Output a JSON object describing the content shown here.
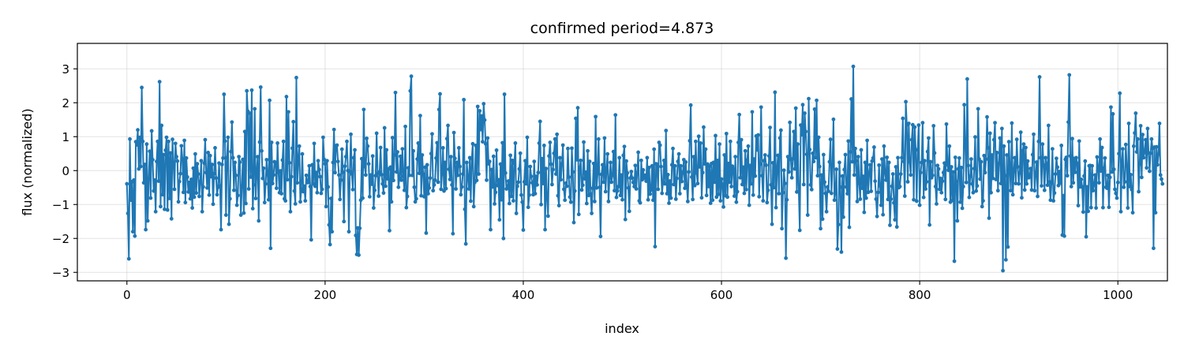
{
  "chart_data": {
    "type": "line",
    "title": "confirmed  period=4.873",
    "xlabel": "index",
    "ylabel": "flux (normalized)",
    "xlim": [
      -50,
      1050
    ],
    "ylim": [
      -3.25,
      3.75
    ],
    "xticks": [
      0,
      200,
      400,
      600,
      800,
      1000
    ],
    "yticks": [
      -3,
      -2,
      -1,
      0,
      1,
      2,
      3
    ],
    "grid": true,
    "series": [
      {
        "color": "#1f77b4",
        "marker": "circle",
        "x_start": 0,
        "x_step": 1,
        "values": [
          -0.39,
          -1.26,
          -2.6,
          0.93,
          -0.87,
          -0.33,
          -1.8,
          -0.28,
          -1.93,
          0.85,
          0.76,
          1.2,
          0.05,
          0.98,
          0.12,
          2.45,
          0.86,
          -0.36,
          0.18,
          -1.74,
          0.78,
          -1.48,
          -0.25,
          0.57,
          -0.81,
          1.17,
          0.32,
          -0.6,
          -0.28,
          -1.21,
          0.27,
          0.86,
          -0.31,
          2.62,
          -1.06,
          1.33,
          -0.71,
          0.47,
          -1.14,
          0.6,
          0.98,
          -1.16,
          0.86,
          -0.82,
          0.52,
          -1.42,
          0.92,
          0.24,
          -0.55,
          0.8,
          0.41,
          0.28,
          -0.92,
          -0.32,
          -0.09,
          0.73,
          0.34,
          -0.64,
          0.89,
          -0.94,
          0.37,
          -0.19,
          -0.63,
          -0.35,
          -0.83,
          -0.26,
          -1.1,
          0.07,
          -0.78,
          0.49,
          -0.66,
          0.2,
          -0.1,
          -0.76,
          -0.33,
          0.29,
          -1.21,
          -0.48,
          0.22,
          0.91,
          -0.06,
          -0.51,
          0.53,
          -0.72,
          0.44,
          -0.18,
          0.18,
          -0.99,
          -0.09,
          0.67,
          -0.22,
          -0.71,
          -0.49,
          0.22,
          -0.45,
          -1.74,
          0.18,
          0.37,
          2.25,
          0.87,
          -1.31,
          0.38,
          0.98,
          -1.58,
          -0.83,
          0.56,
          1.43,
          0.38,
          -0.58,
          0.24,
          -0.14,
          -1.02,
          -0.73,
          0.41,
          0.25,
          -1.31,
          -0.45,
          0.33,
          -1.25,
          1.15,
          -0.97,
          2.35,
          1.75,
          -0.54,
          1.69,
          -0.19,
          2.37,
          -1.12,
          -0.42,
          1.82,
          -0.82,
          -0.01,
          0.41,
          -1.48,
          0.84,
          2.46,
          0.58,
          -0.23,
          0.07,
          -0.94,
          -0.39,
          0.32,
          -0.12,
          -0.86,
          2.07,
          -2.29,
          0.83,
          -0.38,
          -0.13,
          0.26,
          0.24,
          -0.52,
          0.81,
          -0.05,
          -0.65,
          -0.01,
          -0.68,
          0.31,
          0.86,
          -0.83,
          -0.89,
          2.18,
          -0.27,
          1.73,
          0.23,
          -1.21,
          -0.18,
          0.66,
          1.44,
          -0.6,
          -0.98,
          2.74,
          -0.36,
          0.34,
          0.72,
          -0.92,
          -0.54,
          0.49,
          -0.62,
          -0.46,
          -0.89,
          -0.14,
          -0.35,
          -0.35,
          0.14,
          -0.47,
          -2.04,
          0.17,
          -0.39,
          0.8,
          -0.46,
          -0.06,
          -0.65,
          0.29,
          0.03,
          -0.18,
          -0.67,
          -0.55,
          0.98,
          0.33,
          0.2,
          -1.06,
          0.29,
          -0.48,
          -1.6,
          -2.18,
          -0.82,
          -1.8,
          0.24,
          1.21,
          -0.06,
          0.73,
          0.75,
          0.27,
          -0.13,
          -0.85,
          -0.28,
          0.63,
          -0.05,
          -1.5,
          0.13,
          0.41,
          0.86,
          0.0,
          -1.8,
          -0.03,
          1.07,
          -0.1,
          -0.56,
          0.38,
          0.61,
          -1.91,
          -2.47,
          -1.69,
          -2.49,
          -1.7,
          -0.87,
          0.35,
          -0.81,
          1.8,
          0.12,
          -0.13,
          0.95,
          0.72,
          0.2,
          -0.77,
          -0.13,
          -0.4,
          0.43,
          -1.1,
          -0.58,
          -0.15,
          1.1,
          -0.08,
          -0.75,
          -0.04,
          0.68,
          -0.12,
          -0.39,
          -0.66,
          1.26,
          -0.46,
          0.61,
          -0.24,
          0.05,
          -1.77,
          0.1,
          -0.92,
          0.97,
          -0.29,
          0.46,
          2.3,
          -0.04,
          0.55,
          -0.49,
          -0.23,
          0.42,
          -0.28,
          0.64,
          -0.17,
          -0.58,
          1.3,
          -1.09,
          -0.76,
          0.08,
          -0.14,
          2.35,
          2.78,
          -0.14,
          0.58,
          -0.49,
          -0.92,
          -0.83,
          0.34,
          0.81,
          -0.08,
          1.62,
          -0.74,
          0.46,
          -0.1,
          -0.77,
          0.1,
          -1.84,
          0.17,
          -0.68,
          -0.51,
          -0.22,
          0.5,
          1.08,
          -0.59,
          -0.42,
          -0.28,
          0.37,
          0.82,
          -0.34,
          1.8,
          2.26,
          -0.55,
          -0.11,
          0.67,
          -0.6,
          0.24,
          -0.53,
          0.94,
          1.33,
          0.04,
          -0.26,
          0.41,
          -0.42,
          -1.86,
          1.12,
          0.36,
          -0.54,
          0.24,
          -0.14,
          0.67,
          0.12,
          -0.71,
          -0.48,
          -0.1,
          2.09,
          -1.14,
          -2.16,
          0.24,
          -0.16,
          -0.54,
          0.38,
          -0.9,
          0.35,
          0.79,
          -1.06,
          -0.35,
          0.74,
          -0.29,
          1.89,
          -0.1,
          1.76,
          1.21,
          1.61,
          0.85,
          1.97,
          1.49,
          0.79,
          -0.28,
          0.96,
          0.2,
          0.27,
          -1.74,
          0.03,
          -0.48,
          0.42,
          -0.98,
          -0.64,
          0.6,
          -0.44,
          -0.27,
          -1.45,
          0.19,
          -0.86,
          0.82,
          -2.0,
          2.25,
          -0.07,
          -0.54,
          -0.47,
          -0.31,
          -0.97,
          0.45,
          -0.76,
          0.3,
          -0.89,
          0.21,
          0.81,
          -1.26,
          -0.46,
          -0.34,
          0.05,
          0.51,
          -0.72,
          -0.93,
          -1.75,
          -0.33,
          0.29,
          -0.39,
          0.98,
          -1.08,
          -0.72,
          0.12,
          -0.17,
          -0.36,
          -0.71,
          0.27,
          -0.68,
          -0.17,
          -0.42,
          -0.06,
          0.81,
          1.45,
          -1.0,
          0.35,
          -0.38,
          0.74,
          -1.74,
          0.06,
          -0.82,
          -1.34,
          0.43,
          0.83,
          0.19,
          -0.41,
          0.03,
          0.51,
          0.93,
          -0.1,
          1.07,
          -0.74,
          -1.03,
          0.38,
          -0.27,
          0.2,
          0.75,
          -0.55,
          -0.87,
          -0.37,
          -0.46,
          0.65,
          -0.19,
          -0.78,
          -0.93,
          0.66,
          -0.04,
          -1.53,
          -0.6,
          1.54,
          0.32,
          1.85,
          -1.29,
          0.08,
          0.3,
          -0.57,
          -0.43,
          0.84,
          -0.24,
          -0.05,
          -0.97,
          0.58,
          -0.73,
          0.27,
          -0.69,
          -1.26,
          -0.52,
          0.21,
          -0.91,
          1.59,
          -0.51,
          -0.09,
          0.93,
          -0.49,
          -1.94,
          -0.11,
          0.17,
          -0.34,
          0.96,
          -0.62,
          0.04,
          0.49,
          -0.91,
          -0.23,
          0.24,
          -0.34,
          -0.14,
          0.56,
          -0.59,
          1.64,
          -0.79,
          -0.6,
          -0.47,
          0.38,
          -0.73,
          -0.13,
          -0.86,
          0.45,
          0.71,
          -1.44,
          0.28,
          -0.07,
          -0.51,
          -1.2,
          -0.22,
          -0.03,
          -0.22,
          -0.35,
          -0.47,
          0.15,
          -0.54,
          -0.06,
          0.54,
          -0.89,
          -0.95,
          0.3,
          -0.27,
          0.02,
          -0.22,
          -0.14,
          -0.31,
          0.38,
          -0.86,
          0.09,
          -0.69,
          -0.57,
          0.14,
          -0.87,
          0.63,
          -2.24,
          0.2,
          0.18,
          -0.55,
          0.83,
          0.75,
          0.12,
          -0.67,
          -0.35,
          0.3,
          -0.39,
          1.18,
          -0.68,
          -0.12,
          -0.96,
          -0.31,
          -0.81,
          0.17,
          0.65,
          -0.41,
          0.14,
          -0.84,
          -0.23,
          0.27,
          0.49,
          -0.68,
          0.14,
          -0.32,
          -0.06,
          0.32,
          -0.52,
          0.25,
          -0.43,
          -0.91,
          -0.04,
          0.88,
          1.93,
          -0.19,
          -0.85,
          0.41,
          -0.44,
          0.86,
          -0.07,
          -0.38,
          1.01,
          0.11,
          0.81,
          -0.8,
          -0.06,
          1.28,
          0.2,
          0.63,
          -0.73,
          0.19,
          -0.47,
          0.13,
          -0.96,
          0.21,
          -0.87,
          0.24,
          -0.34,
          1.03,
          -0.78,
          0.3,
          -0.7,
          0.78,
          -0.89,
          -0.25,
          -0.41,
          -1.07,
          0.46,
          -0.74,
          1.09,
          -0.78,
          0.21,
          -0.34,
          0.86,
          -0.47,
          0.13,
          0.05,
          -0.75,
          0.41,
          -0.93,
          -0.62,
          0.83,
          1.65,
          -0.21,
          0.91,
          -0.41,
          0.1,
          -0.67,
          0.58,
          -0.56,
          0.31,
          0.72,
          -1.02,
          0.15,
          -0.39,
          1.73,
          -0.72,
          0.34,
          -0.16,
          1.02,
          0.61,
          1.05,
          -0.77,
          0.19,
          1.87,
          -0.15,
          -0.89,
          0.29,
          0.46,
          0.16,
          -0.94,
          -0.58,
          0.43,
          1.27,
          -0.42,
          -1.58,
          0.23,
          -0.5,
          2.31,
          -1.09,
          0.05,
          0.45,
          -0.68,
          0.96,
          1.19,
          -1.71,
          -0.65,
          0.01,
          -0.38,
          -2.58,
          -0.86,
          0.41,
          -0.04,
          1.42,
          0.33,
          -0.21,
          0.35,
          1.15,
          0.05,
          1.84,
          -0.63,
          0.78,
          -0.62,
          -1.76,
          1.34,
          1.06,
          1.94,
          -0.41,
          1.69,
          1.15,
          0.48,
          -1.31,
          2.12,
          0.62,
          -0.42,
          -0.56,
          0.51,
          0.27,
          1.81,
          0.38,
          2.07,
          -0.15,
          0.98,
          0.12,
          -1.71,
          -0.13,
          -1.43,
          0.47,
          -0.34,
          -0.67,
          -1.21,
          -0.48,
          -0.61,
          0.26,
          0.92,
          -0.67,
          0.14,
          1.51,
          -0.87,
          -0.65,
          0.04,
          -2.31,
          -1.59,
          0.24,
          -0.49,
          -2.4,
          -0.16,
          -1.37,
          0.03,
          0.47,
          -0.48,
          -0.68,
          0.87,
          -1.67,
          0.55,
          2.11,
          0.26,
          3.07,
          -0.13,
          0.65,
          0.29,
          -0.91,
          0.41,
          -0.37,
          -0.84,
          0.61,
          -0.52,
          -0.17,
          -1.23,
          0.24,
          -0.81,
          0.89,
          -0.64,
          -0.08,
          0.17,
          -0.61,
          0.28,
          0.37,
          0.69,
          -0.31,
          -0.84,
          -1.35,
          -0.64,
          0.16,
          -0.45,
          -1.02,
          0.34,
          -1.3,
          0.72,
          -0.06,
          -0.28,
          0.39,
          -0.85,
          0.24,
          -1.61,
          -0.84,
          -0.46,
          -0.1,
          -0.95,
          -1.45,
          0.11,
          -1.66,
          0.38,
          -0.5,
          -0.47,
          -0.1,
          0.38,
          1.54,
          0.27,
          -0.75,
          2.03,
          1.35,
          -0.33,
          1.39,
          0.26,
          -0.13,
          0.91,
          1.35,
          -0.86,
          1.28,
          0.61,
          -0.9,
          0.62,
          1.34,
          -1.02,
          -0.06,
          0.24,
          1.41,
          -0.79,
          0.29,
          -0.54,
          -0.33,
          0.56,
          0.96,
          -1.6,
          0.26,
          -0.21,
          -0.14,
          1.32,
          0.52,
          -0.47,
          -0.98,
          0.15,
          0.05,
          -0.55,
          -0.23,
          -0.65,
          -0.31,
          -0.06,
          0.22,
          -0.85,
          1.37,
          0.18,
          0.01,
          0.72,
          -0.93,
          0.11,
          -0.88,
          -0.04,
          -2.67,
          0.39,
          -0.32,
          -1.48,
          0.05,
          0.37,
          -0.93,
          0.09,
          -1.11,
          -0.47,
          1.94,
          0.73,
          -0.35,
          2.7,
          0.15,
          -0.79,
          -0.17,
          0.34,
          -0.39,
          -0.65,
          0.06,
          0.99,
          -0.6,
          -0.45,
          1.82,
          0.34,
          -0.25,
          0.26,
          -1.06,
          -0.89,
          0.44,
          -0.06,
          0.34,
          1.58,
          0.67,
          -1.4,
          1.1,
          -0.65,
          0.46,
          -0.23,
          0.91,
          1.41,
          -0.26,
          0.53,
          -0.59,
          0.21,
          0.96,
          -0.38,
          1.24,
          -2.95,
          0.72,
          -0.15,
          -2.63,
          0.46,
          -2.25,
          0.85,
          0.08,
          -0.59,
          1.4,
          -0.71,
          -0.02,
          0.38,
          -0.38,
          0.92,
          0.11,
          -0.39,
          -0.07,
          1.13,
          -0.8,
          0.58,
          0.78,
          -0.57,
          0.68,
          -0.39,
          0.28,
          -0.21,
          -0.17,
          0.06,
          -0.57,
          0.47,
          1.07,
          -0.59,
          -0.12,
          0.25,
          -0.76,
          0.86,
          2.76,
          0.38,
          -0.45,
          0.78,
          0.16,
          -0.58,
          0.38,
          0.19,
          -0.43,
          1.33,
          -0.33,
          -0.87,
          -0.37,
          0.64,
          -0.89,
          -0.66,
          -0.1,
          0.36,
          0.1,
          -0.44,
          -0.03,
          -0.37,
          0.74,
          -1.9,
          -0.74,
          -1.93,
          0.33,
          0.39,
          -0.15,
          1.43,
          2.82,
          0.43,
          -0.47,
          0.94,
          -0.36,
          0.36,
          -0.05,
          0.38,
          0.21,
          -1.03,
          0.87,
          -0.48,
          -0.26,
          -0.48,
          -1.22,
          -0.16,
          0.28,
          -1.95,
          -0.48,
          -1.2,
          0.14,
          0.15,
          -1.09,
          0.14,
          -0.59,
          -0.41,
          -0.13,
          -1.1,
          0.4,
          0.11,
          -0.36,
          0.93,
          -0.01,
          0.68,
          -1.09,
          0.07,
          0.37,
          -0.49,
          -0.52,
          -0.14,
          -1.08,
          -0.2,
          1.87,
          -0.04,
          1.67,
          0.04,
          -0.55,
          -0.67,
          -0.81,
          -0.35,
          0.5,
          2.28,
          -1.21,
          0.27,
          0.64,
          -0.49,
          -0.33,
          0.77,
          0.14,
          -1.1,
          1.39,
          -0.47,
          -0.12,
          -0.56,
          -1.24,
          0.72,
          1.11,
          1.69,
          0.55,
          0.93,
          -0.62,
          0.19,
          1.32,
          -0.2,
          1.06,
          0.38,
          0.54,
          0.91,
          0.08,
          1.24,
          0.52,
          -0.02,
          0.51,
          0.93,
          0.66,
          -2.29,
          0.69,
          -1.24,
          0.7,
          0.17,
          0.48,
          1.39,
          -0.13,
          -0.25,
          -0.39
        ]
      }
    ]
  }
}
